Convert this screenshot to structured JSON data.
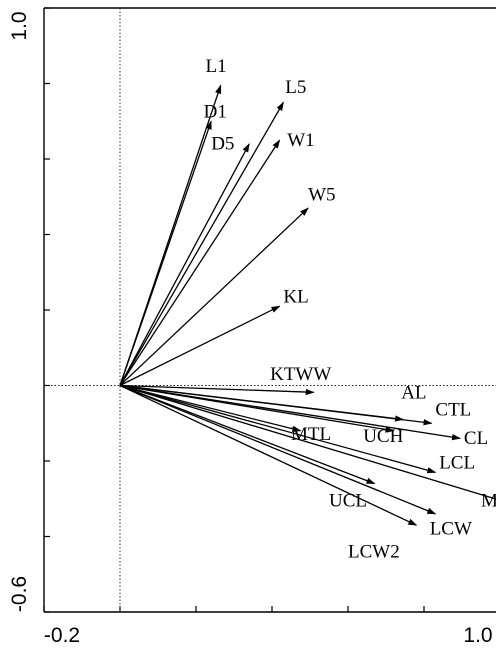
{
  "chart_data": {
    "type": "biplot",
    "x_range": [
      -0.2,
      1.0
    ],
    "y_range": [
      -0.6,
      1.0
    ],
    "x_ticks_labeled": [
      "-0.2",
      "1.0"
    ],
    "y_ticks_labeled": [
      "1.0",
      "-0.6"
    ],
    "origin": [
      0,
      0
    ],
    "reference_lines": "dotted lines at x = 0 and y = 0",
    "vectors": [
      {
        "name": "L1",
        "x": 0.265,
        "y": 0.795
      },
      {
        "name": "D1",
        "x": 0.24,
        "y": 0.7
      },
      {
        "name": "D5",
        "x": 0.34,
        "y": 0.64
      },
      {
        "name": "L5",
        "x": 0.43,
        "y": 0.75
      },
      {
        "name": "W1",
        "x": 0.42,
        "y": 0.65
      },
      {
        "name": "W5",
        "x": 0.495,
        "y": 0.47
      },
      {
        "name": "KL",
        "x": 0.42,
        "y": 0.21
      },
      {
        "name": "KTWW",
        "x": 0.51,
        "y": -0.018
      },
      {
        "name": "AL",
        "x": 0.745,
        "y": -0.09
      },
      {
        "name": "CTL",
        "x": 0.82,
        "y": -0.1
      },
      {
        "name": "MTL",
        "x": 0.475,
        "y": -0.12
      },
      {
        "name": "UCH",
        "x": 0.72,
        "y": -0.12
      },
      {
        "name": "CL",
        "x": 0.895,
        "y": -0.14
      },
      {
        "name": "LCL",
        "x": 0.83,
        "y": -0.23
      },
      {
        "name": "MTW",
        "x": 1.02,
        "y": -0.31
      },
      {
        "name": "UCL",
        "x": 0.67,
        "y": -0.26
      },
      {
        "name": "LCW",
        "x": 0.83,
        "y": -0.34
      },
      {
        "name": "LCW2",
        "x": 0.78,
        "y": -0.37
      }
    ],
    "labels": [
      {
        "name": "L1",
        "x": 0.225,
        "y": 0.83
      },
      {
        "name": "D1",
        "x": 0.22,
        "y": 0.71
      },
      {
        "name": "D5",
        "x": 0.24,
        "y": 0.625
      },
      {
        "name": "L5",
        "x": 0.435,
        "y": 0.775
      },
      {
        "name": "W1",
        "x": 0.44,
        "y": 0.635
      },
      {
        "name": "W5",
        "x": 0.495,
        "y": 0.49
      },
      {
        "name": "KL",
        "x": 0.43,
        "y": 0.22
      },
      {
        "name": "KTWW",
        "x": 0.395,
        "y": 0.015
      },
      {
        "name": "AL",
        "x": 0.74,
        "y": -0.035
      },
      {
        "name": "CTL",
        "x": 0.83,
        "y": -0.08
      },
      {
        "name": "MTL",
        "x": 0.45,
        "y": -0.145
      },
      {
        "name": "UCH",
        "x": 0.64,
        "y": -0.15
      },
      {
        "name": "CL",
        "x": 0.905,
        "y": -0.155
      },
      {
        "name": "LCL",
        "x": 0.84,
        "y": -0.22
      },
      {
        "name": "MTW",
        "x": 0.95,
        "y": -0.32
      },
      {
        "name": "UCL",
        "x": 0.55,
        "y": -0.32
      },
      {
        "name": "LCW",
        "x": 0.815,
        "y": -0.395
      },
      {
        "name": "LCW2",
        "x": 0.6,
        "y": -0.455
      }
    ]
  }
}
